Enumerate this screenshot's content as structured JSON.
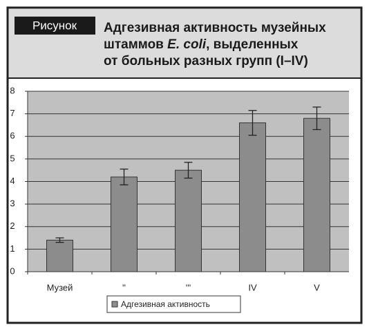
{
  "figure_label": "Рисунок",
  "chart_data": {
    "type": "bar",
    "title": [
      "Адгезивная активность музейных",
      "штаммов ",
      "E. coli",
      ", выделенных",
      "от больных разных групп (I–IV)"
    ],
    "categories": [
      "Музей",
      "''",
      "'''",
      "IV",
      "V"
    ],
    "series": [
      {
        "name": "Адгезивная активность",
        "color": "#8c8c8c",
        "values": [
          1.4,
          4.2,
          4.5,
          6.6,
          6.8
        ],
        "errors": [
          0.1,
          0.35,
          0.35,
          0.55,
          0.5
        ]
      }
    ],
    "ylim": [
      0,
      8
    ],
    "yticks": [
      0,
      1,
      2,
      3,
      4,
      5,
      6,
      7,
      8
    ],
    "grid": true
  }
}
